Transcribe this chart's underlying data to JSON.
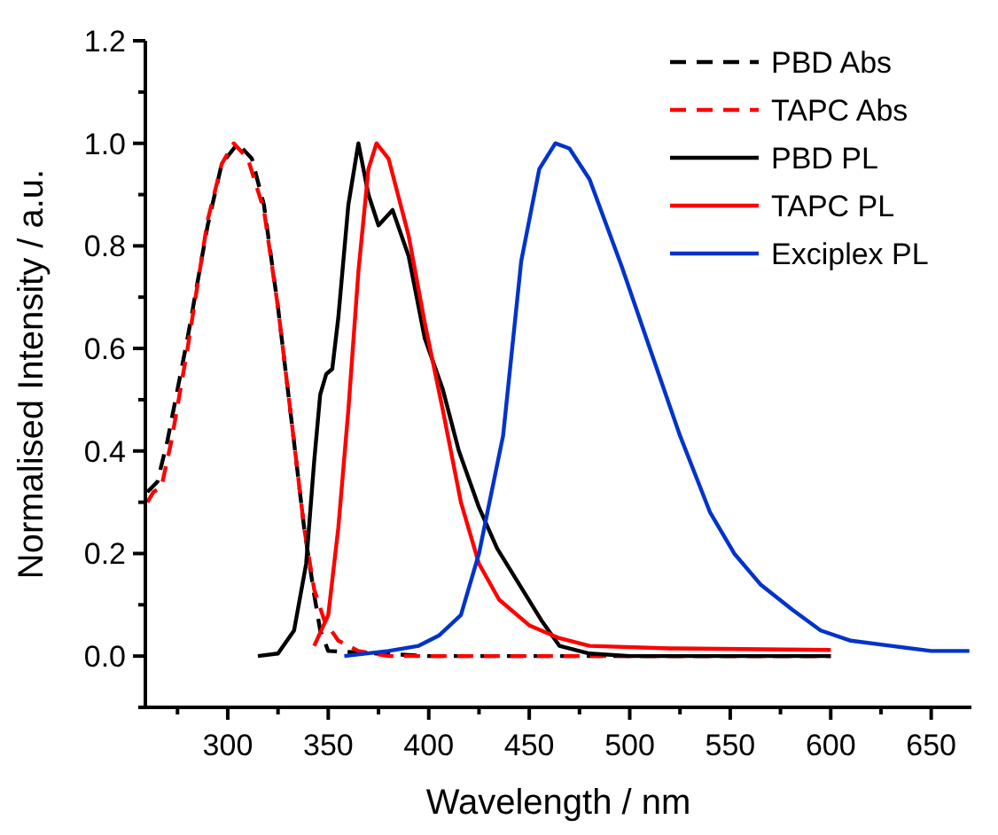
{
  "chart_data": {
    "type": "line",
    "xlabel": "Wavelength / nm",
    "ylabel": "Normalised Intensity / a.u.",
    "xlim": [
      259,
      670
    ],
    "ylim": [
      -0.1,
      1.2
    ],
    "xticks": [
      {
        "value": 275,
        "label": null
      },
      300,
      {
        "value": 325,
        "label": null
      },
      350,
      {
        "value": 375,
        "label": null
      },
      400,
      {
        "value": 425,
        "label": null
      },
      450,
      {
        "value": 475,
        "label": null
      },
      500,
      {
        "value": 525,
        "label": null
      },
      550,
      {
        "value": 575,
        "label": null
      },
      600,
      {
        "value": 625,
        "label": null
      },
      650
    ],
    "yticks": [
      {
        "value": -0.1,
        "label": null
      },
      {
        "value": 0,
        "label": "0.0"
      },
      {
        "value": 0.1,
        "label": null
      },
      0.2,
      {
        "value": 0.3,
        "label": null
      },
      0.4,
      {
        "value": 0.5,
        "label": null
      },
      0.6,
      {
        "value": 0.7,
        "label": null
      },
      0.8,
      {
        "value": 0.9,
        "label": null
      },
      {
        "value": 1,
        "label": "1.0"
      },
      {
        "value": 1.1,
        "label": null
      },
      1.2
    ],
    "grid": false,
    "legend": "top right",
    "marker": "none",
    "series": [
      {
        "name": "PBD Abs",
        "color": "#000000",
        "line_style": "dashed",
        "x": [
          260,
          265,
          270,
          280,
          290,
          297,
          305,
          312,
          318,
          325,
          332,
          338,
          343,
          346,
          350,
          400,
          500,
          600
        ],
        "values": [
          0.32,
          0.34,
          0.42,
          0.62,
          0.84,
          0.96,
          1.0,
          0.97,
          0.88,
          0.68,
          0.45,
          0.25,
          0.12,
          0.05,
          0.01,
          0,
          0,
          0
        ]
      },
      {
        "name": "TAPC Abs",
        "color": "#ff0000",
        "line_style": "dashed",
        "x": [
          260,
          263,
          267,
          272,
          280,
          290,
          297,
          303,
          310,
          318,
          325,
          332,
          338,
          343,
          348,
          355,
          365,
          380,
          600
        ],
        "values": [
          0.3,
          0.32,
          0.33,
          0.42,
          0.6,
          0.85,
          0.96,
          1.0,
          0.97,
          0.87,
          0.68,
          0.45,
          0.25,
          0.13,
          0.07,
          0.03,
          0.01,
          0,
          0
        ]
      },
      {
        "name": "PBD PL",
        "color": "#000000",
        "line_style": "solid",
        "x": [
          315,
          325,
          333,
          339,
          343,
          346,
          349,
          352,
          355,
          360,
          365,
          370,
          375,
          382,
          390,
          398,
          407,
          415,
          425,
          434,
          445,
          456,
          465,
          480,
          500,
          600
        ],
        "values": [
          0,
          0.005,
          0.05,
          0.18,
          0.38,
          0.51,
          0.55,
          0.56,
          0.66,
          0.88,
          1.0,
          0.9,
          0.84,
          0.87,
          0.78,
          0.62,
          0.52,
          0.4,
          0.29,
          0.21,
          0.14,
          0.07,
          0.02,
          0.005,
          0,
          0
        ]
      },
      {
        "name": "TAPC PL",
        "color": "#ff0000",
        "line_style": "solid",
        "x": [
          343,
          350,
          355,
          360,
          365,
          370,
          374,
          380,
          390,
          398,
          407,
          416,
          425,
          435,
          450,
          465,
          480,
          520,
          600
        ],
        "values": [
          0.02,
          0.08,
          0.25,
          0.48,
          0.75,
          0.95,
          1.0,
          0.97,
          0.82,
          0.65,
          0.48,
          0.3,
          0.18,
          0.11,
          0.06,
          0.035,
          0.02,
          0.015,
          0.012
        ]
      },
      {
        "name": "Exciplex PL",
        "color": "#0033cc",
        "line_style": "solid",
        "x": [
          358,
          380,
          395,
          405,
          416,
          425,
          437,
          446,
          455,
          463,
          470,
          480,
          496,
          510,
          525,
          540,
          552,
          565,
          581,
          595,
          610,
          630,
          650,
          669
        ],
        "values": [
          0,
          0.01,
          0.02,
          0.04,
          0.08,
          0.2,
          0.43,
          0.77,
          0.95,
          1.0,
          0.99,
          0.93,
          0.76,
          0.6,
          0.43,
          0.28,
          0.2,
          0.14,
          0.09,
          0.05,
          0.03,
          0.02,
          0.01,
          0.01
        ]
      }
    ]
  }
}
